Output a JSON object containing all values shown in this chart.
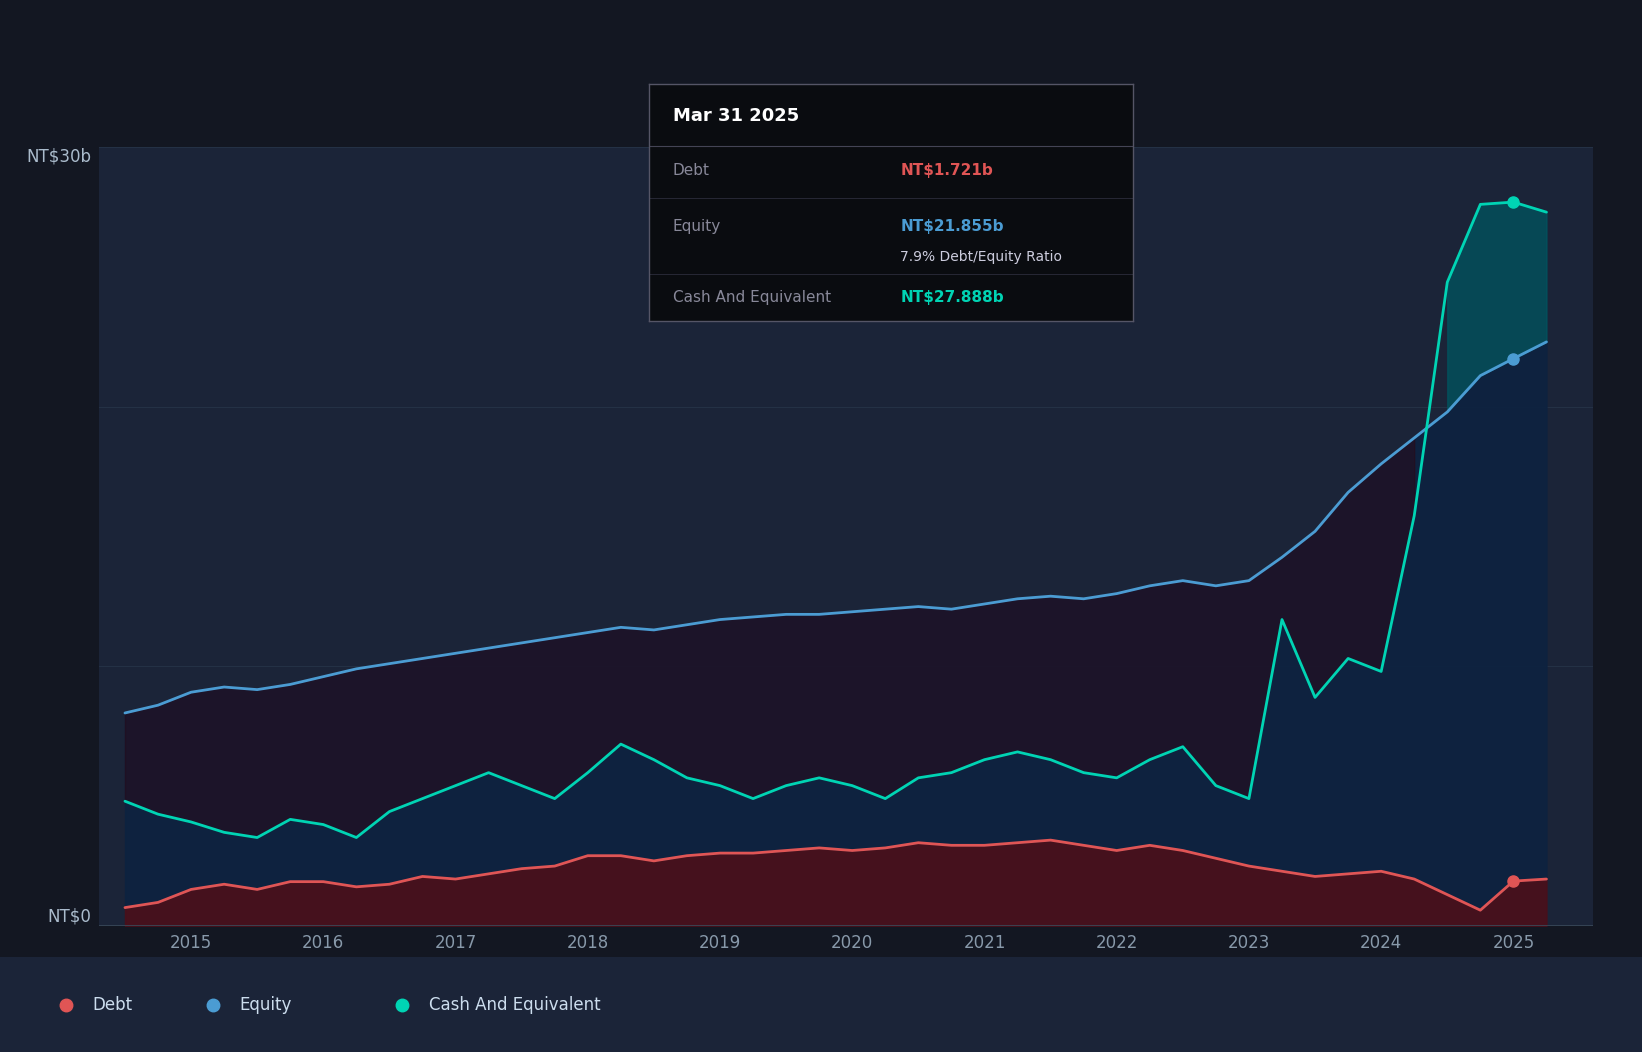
{
  "bg_color": "#131722",
  "plot_bg_color": "#1b2438",
  "grid_color": "#263347",
  "debt_color": "#e05555",
  "equity_color": "#4b9cd3",
  "cash_color": "#00d4b4",
  "ylim": [
    0,
    30
  ],
  "xlim": [
    2014.3,
    2025.6
  ],
  "ytick_top": "NT$30b",
  "ytick_bottom": "NT$0",
  "xticks": [
    2015,
    2016,
    2017,
    2018,
    2019,
    2020,
    2021,
    2022,
    2023,
    2024,
    2025
  ],
  "xticks_labels": [
    "2015",
    "2016",
    "2017",
    "2018",
    "2019",
    "2020",
    "2021",
    "2022",
    "2023",
    "2024",
    "2025"
  ],
  "tooltip_title": "Mar 31 2025",
  "tooltip_debt_label": "Debt",
  "tooltip_debt_value": "NT$1.721b",
  "tooltip_equity_label": "Equity",
  "tooltip_equity_value": "NT$21.855b",
  "tooltip_ratio": "7.9% Debt/Equity Ratio",
  "tooltip_cash_label": "Cash And Equivalent",
  "tooltip_cash_value": "NT$27.888b",
  "legend_items": [
    "Debt",
    "Equity",
    "Cash And Equivalent"
  ],
  "years": [
    2014.5,
    2014.75,
    2015.0,
    2015.25,
    2015.5,
    2015.75,
    2016.0,
    2016.25,
    2016.5,
    2016.75,
    2017.0,
    2017.25,
    2017.5,
    2017.75,
    2018.0,
    2018.25,
    2018.5,
    2018.75,
    2019.0,
    2019.25,
    2019.5,
    2019.75,
    2020.0,
    2020.25,
    2020.5,
    2020.75,
    2021.0,
    2021.25,
    2021.5,
    2021.75,
    2022.0,
    2022.25,
    2022.5,
    2022.75,
    2023.0,
    2023.25,
    2023.5,
    2023.75,
    2024.0,
    2024.25,
    2024.5,
    2024.75,
    2025.0,
    2025.25
  ],
  "debt": [
    0.7,
    0.9,
    1.4,
    1.6,
    1.4,
    1.7,
    1.7,
    1.5,
    1.6,
    1.9,
    1.8,
    2.0,
    2.2,
    2.3,
    2.7,
    2.7,
    2.5,
    2.7,
    2.8,
    2.8,
    2.9,
    3.0,
    2.9,
    3.0,
    3.2,
    3.1,
    3.1,
    3.2,
    3.3,
    3.1,
    2.9,
    3.1,
    2.9,
    2.6,
    2.3,
    2.1,
    1.9,
    2.0,
    2.1,
    1.8,
    1.2,
    0.6,
    1.721,
    1.8
  ],
  "equity": [
    8.2,
    8.5,
    9.0,
    9.2,
    9.1,
    9.3,
    9.6,
    9.9,
    10.1,
    10.3,
    10.5,
    10.7,
    10.9,
    11.1,
    11.3,
    11.5,
    11.4,
    11.6,
    11.8,
    11.9,
    12.0,
    12.0,
    12.1,
    12.2,
    12.3,
    12.2,
    12.4,
    12.6,
    12.7,
    12.6,
    12.8,
    13.1,
    13.3,
    13.1,
    13.3,
    14.2,
    15.2,
    16.7,
    17.8,
    18.8,
    19.8,
    21.2,
    21.855,
    22.5
  ],
  "cash": [
    4.8,
    4.3,
    4.0,
    3.6,
    3.4,
    4.1,
    3.9,
    3.4,
    4.4,
    4.9,
    5.4,
    5.9,
    5.4,
    4.9,
    5.9,
    7.0,
    6.4,
    5.7,
    5.4,
    4.9,
    5.4,
    5.7,
    5.4,
    4.9,
    5.7,
    5.9,
    6.4,
    6.7,
    6.4,
    5.9,
    5.7,
    6.4,
    6.9,
    5.4,
    4.9,
    11.8,
    8.8,
    10.3,
    9.8,
    15.8,
    24.8,
    27.8,
    27.888,
    27.5
  ]
}
